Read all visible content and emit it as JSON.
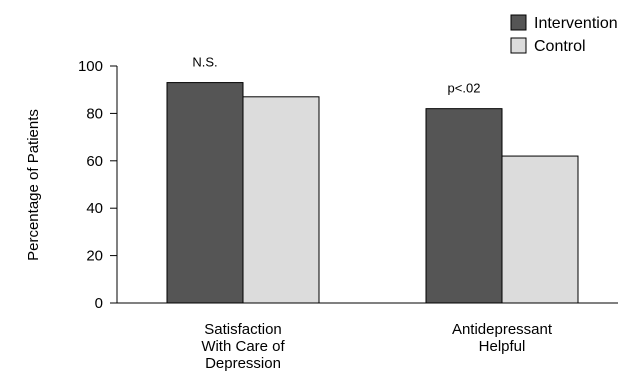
{
  "chart_data": {
    "type": "bar",
    "categories": [
      [
        "Satisfaction",
        "With Care of",
        "Depression"
      ],
      [
        "Antidepressant",
        "Helpful"
      ]
    ],
    "series": [
      {
        "name": "Intervention",
        "values": [
          93,
          82
        ],
        "color": "#555555"
      },
      {
        "name": "Control",
        "values": [
          87,
          62
        ],
        "color": "#dcdcdc"
      }
    ],
    "annotations": [
      "N.S.",
      "p<.02"
    ],
    "ylabel": "Percentage of Patients",
    "xlabel": "",
    "ylim": [
      0,
      100
    ],
    "yticks": [
      0,
      20,
      40,
      60,
      80,
      100
    ],
    "grid": false,
    "legend_position": "top-right"
  }
}
